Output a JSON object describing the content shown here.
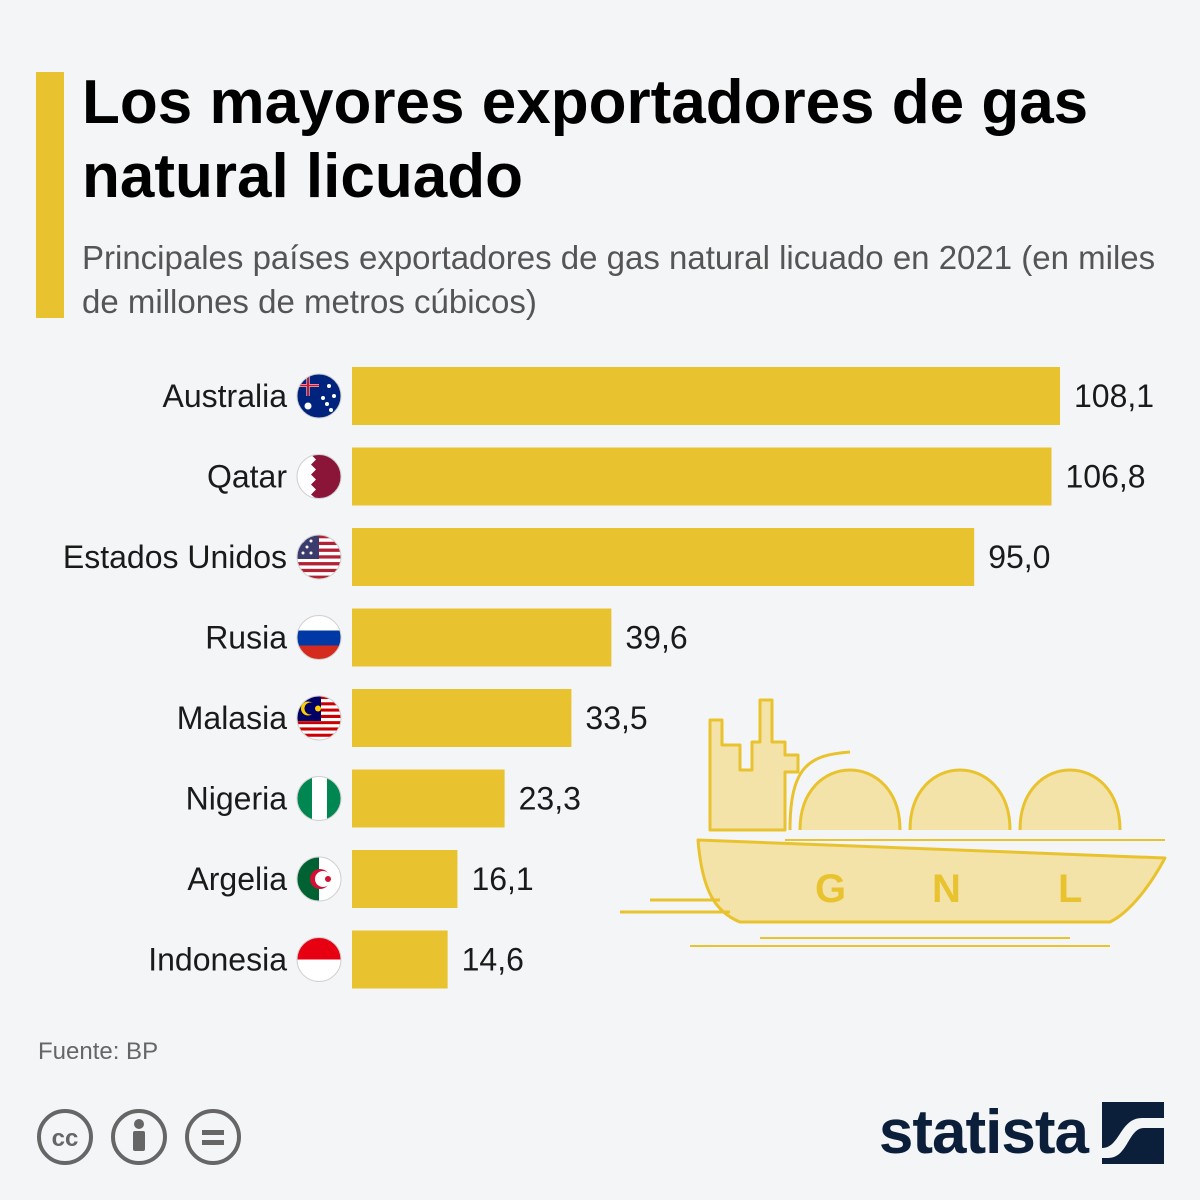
{
  "header": {
    "title": "Los mayores exportadores de gas natural licuado",
    "subtitle": "Principales países exportadores de gas natural licuado en 2021 (en miles de millones de metros cúbicos)"
  },
  "chart_data": {
    "type": "bar",
    "orientation": "horizontal",
    "title": "Los mayores exportadores de gas natural licuado",
    "subtitle": "Principales países exportadores de gas natural licuado en 2021 (en miles de millones de metros cúbicos)",
    "categories": [
      "Australia",
      "Qatar",
      "Estados Unidos",
      "Rusia",
      "Malasia",
      "Nigeria",
      "Argelia",
      "Indonesia"
    ],
    "values": [
      108.1,
      106.8,
      95.0,
      39.6,
      33.5,
      23.3,
      16.1,
      14.6
    ],
    "value_labels": [
      "108,1",
      "106,8",
      "95,0",
      "39,6",
      "33,5",
      "23,3",
      "16,1",
      "14,6"
    ],
    "flags": [
      "australia-flag",
      "qatar-flag",
      "usa-flag",
      "russia-flag",
      "malaysia-flag",
      "nigeria-flag",
      "algeria-flag",
      "indonesia-flag"
    ],
    "xlim": [
      0,
      108.1
    ],
    "grid": false,
    "bar_color": "#e9c32f"
  },
  "illustration": {
    "name": "lng-ship-icon",
    "letters": [
      "G",
      "N",
      "L"
    ]
  },
  "footer": {
    "source": "Fuente: BP",
    "license_icons": [
      "cc-icon",
      "attribution-icon",
      "no-derivatives-icon"
    ],
    "brand": "statista"
  },
  "colors": {
    "accent": "#e9c32f",
    "background": "#f4f5f7",
    "ship_fill": "#f3e3a8",
    "ship_stroke": "#e9c32f",
    "brand": "#0b1f3a"
  }
}
